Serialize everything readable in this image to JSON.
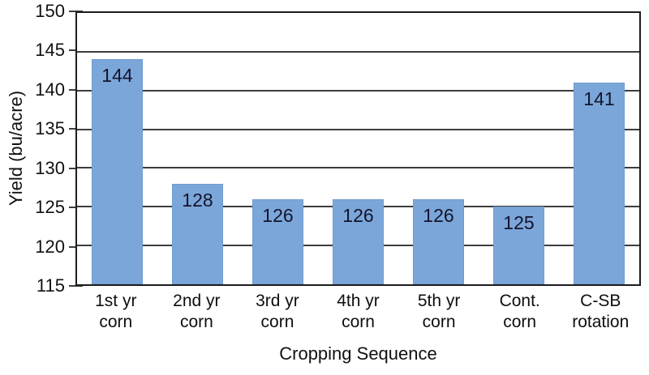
{
  "chart_data": {
    "type": "bar",
    "title": "",
    "xlabel": "Cropping Sequence",
    "ylabel": "Yield (bu/acre)",
    "categories": [
      "1st yr\ncorn",
      "2nd yr\ncorn",
      "3rd yr\ncorn",
      "4th yr\ncorn",
      "5th yr\ncorn",
      "Cont.\ncorn",
      "C-SB\nrotation"
    ],
    "values": [
      144,
      128,
      126,
      126,
      126,
      125,
      141
    ],
    "bar_labels": [
      "144",
      "128",
      "126",
      "126",
      "126",
      "125",
      "141"
    ],
    "ylim": [
      115,
      150
    ],
    "yticks": [
      115,
      120,
      125,
      130,
      135,
      140,
      145,
      150
    ],
    "grid": true,
    "legend_position": "none",
    "bar_width_fraction": 0.63,
    "colors": {
      "bar_fill": "#7ba6d9",
      "bar_edge": "#6f9bd0",
      "gridline": "#3d3d3d",
      "axis_border": "#1c1c1c",
      "tick_text": "#111111",
      "bar_label_text": "#14142b",
      "background": "#ffffff"
    }
  }
}
